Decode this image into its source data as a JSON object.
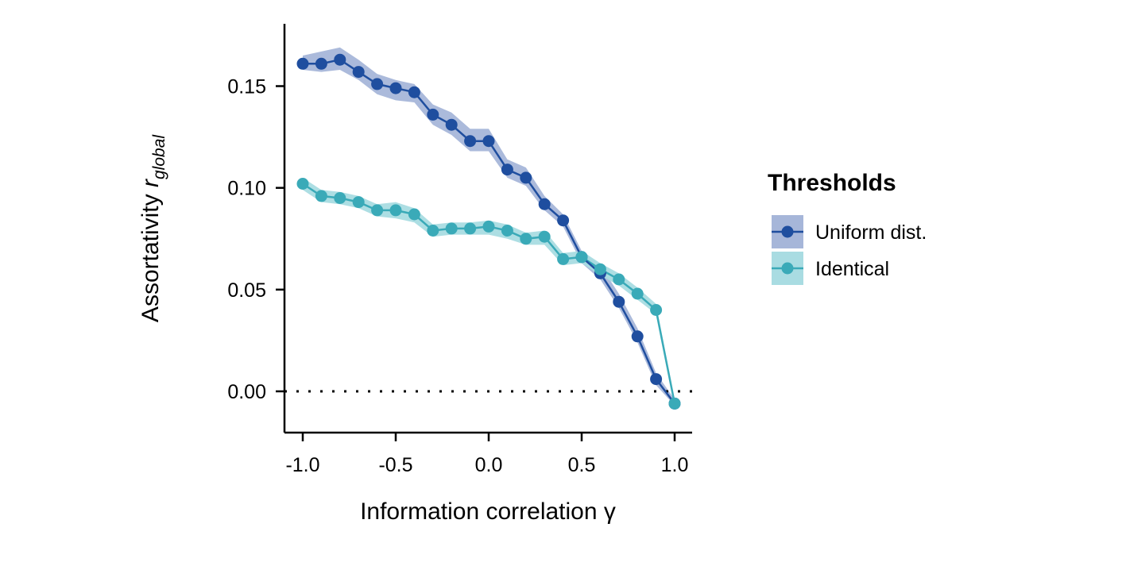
{
  "chart_data": {
    "type": "line",
    "xlabel": "Information correlation",
    "xlabel_symbol": "γ",
    "ylabel": "Assortativity",
    "ylabel_symbol": "r",
    "ylabel_subscript": "global",
    "xlim": [
      -1.1,
      1.1
    ],
    "ylim": [
      -0.02,
      0.18
    ],
    "x_ticks": [
      -1.0,
      -0.5,
      0.0,
      0.5,
      1.0
    ],
    "x_tick_labels": [
      "-1.0",
      "-0.5",
      "0.0",
      "0.5",
      "1.0"
    ],
    "y_ticks": [
      0.0,
      0.05,
      0.1,
      0.15
    ],
    "y_tick_labels": [
      "0.00",
      "0.05",
      "0.10",
      "0.15"
    ],
    "reference_line": {
      "y": 0,
      "style": "dotted"
    },
    "grid": false,
    "legend": {
      "title": "Thresholds",
      "position": "right"
    },
    "x": [
      -1.0,
      -0.9,
      -0.8,
      -0.7,
      -0.6,
      -0.5,
      -0.4,
      -0.3,
      -0.2,
      -0.1,
      0.0,
      0.1,
      0.2,
      0.3,
      0.4,
      0.5,
      0.6,
      0.7,
      0.8,
      0.9,
      1.0
    ],
    "series": [
      {
        "name": "Uniform dist.",
        "color": "#1f4e9f",
        "band_color": "#a6b6d9",
        "values": [
          0.161,
          0.161,
          0.163,
          0.157,
          0.151,
          0.149,
          0.147,
          0.136,
          0.131,
          0.123,
          0.123,
          0.109,
          0.105,
          0.092,
          0.084,
          0.066,
          0.058,
          0.044,
          0.027,
          0.006,
          -0.006
        ],
        "lower": [
          0.158,
          0.157,
          0.158,
          0.153,
          0.146,
          0.143,
          0.142,
          0.131,
          0.126,
          0.118,
          0.118,
          0.105,
          0.101,
          0.089,
          0.081,
          0.063,
          0.055,
          0.041,
          0.024,
          0.003,
          -0.007
        ],
        "upper": [
          0.165,
          0.167,
          0.169,
          0.163,
          0.156,
          0.153,
          0.151,
          0.141,
          0.137,
          0.129,
          0.129,
          0.114,
          0.11,
          0.096,
          0.087,
          0.069,
          0.062,
          0.048,
          0.031,
          0.009,
          -0.004
        ]
      },
      {
        "name": "Identical",
        "color": "#3aaab8",
        "band_color": "#a9dce2",
        "values": [
          0.102,
          0.096,
          0.095,
          0.093,
          0.089,
          0.089,
          0.087,
          0.079,
          0.08,
          0.08,
          0.081,
          0.079,
          0.075,
          0.076,
          0.065,
          0.066,
          0.06,
          0.055,
          0.048,
          0.04,
          -0.006
        ],
        "lower": [
          0.099,
          0.093,
          0.092,
          0.09,
          0.086,
          0.085,
          0.083,
          0.076,
          0.077,
          0.077,
          0.077,
          0.075,
          0.072,
          0.072,
          0.062,
          0.063,
          0.057,
          0.052,
          0.045,
          0.038,
          -0.007
        ],
        "upper": [
          0.105,
          0.099,
          0.098,
          0.096,
          0.092,
          0.093,
          0.09,
          0.082,
          0.083,
          0.083,
          0.084,
          0.082,
          0.078,
          0.079,
          0.068,
          0.069,
          0.063,
          0.058,
          0.051,
          0.043,
          -0.004
        ]
      }
    ]
  }
}
